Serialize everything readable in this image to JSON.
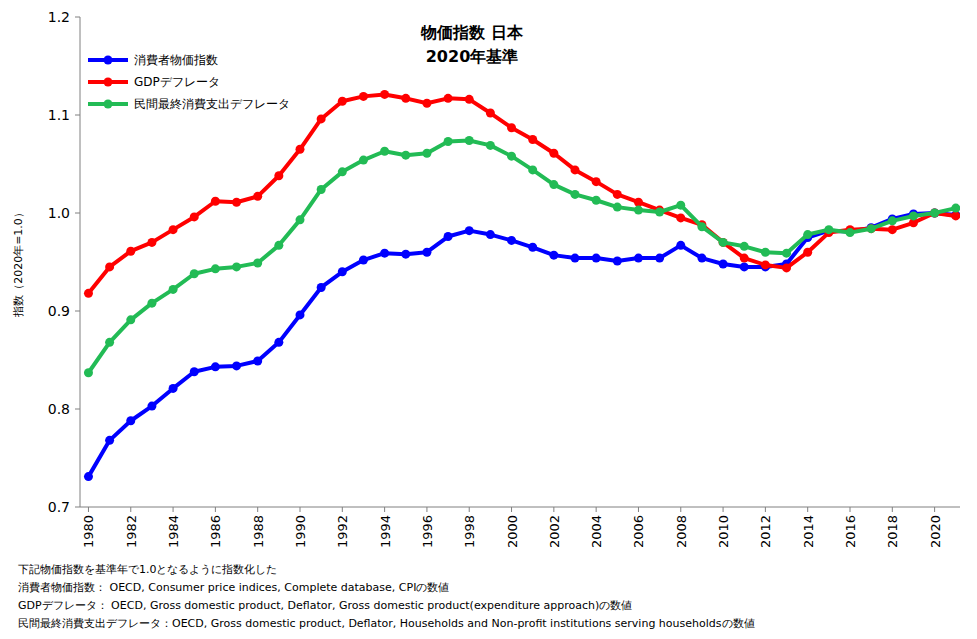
{
  "chart_data": {
    "type": "line",
    "title": "物価指数 日本",
    "subtitle": "2020年基準",
    "y_label": "指数（2020年=1.0）",
    "annotations": [
      "下記物価指数を基準年で1.0となるように指数化した",
      "消費者物価指数： OECD, Consumer price indices, Complete database, CPIの数値",
      "GDPデフレータ： OECD, Gross domestic product, Deflator, Gross domestic product(expenditure approach)の数値",
      "民間最終消費支出デフレータ：OECD, Gross domestic product, Deflator, Households and Non-profit institutions serving householdsの数値"
    ],
    "x": [
      1980,
      1981,
      1982,
      1983,
      1984,
      1985,
      1986,
      1987,
      1988,
      1989,
      1990,
      1991,
      1992,
      1993,
      1994,
      1995,
      1996,
      1997,
      1998,
      1999,
      2000,
      2001,
      2002,
      2003,
      2004,
      2005,
      2006,
      2007,
      2008,
      2009,
      2010,
      2011,
      2012,
      2013,
      2014,
      2015,
      2016,
      2017,
      2018,
      2019,
      2020,
      2021
    ],
    "series": [
      {
        "name": "消費者物価指数",
        "color": "#0000ff",
        "marker": "circle",
        "line_style": "solid",
        "values": [
          0.731,
          0.768,
          0.788,
          0.803,
          0.821,
          0.838,
          0.843,
          0.844,
          0.849,
          0.868,
          0.896,
          0.924,
          0.94,
          0.952,
          0.959,
          0.958,
          0.96,
          0.976,
          0.982,
          0.978,
          0.972,
          0.965,
          0.957,
          0.954,
          0.954,
          0.951,
          0.954,
          0.954,
          0.967,
          0.954,
          0.948,
          0.945,
          0.945,
          0.948,
          0.975,
          0.982,
          0.981,
          0.985,
          0.994,
          0.999,
          1.0,
          0.998
        ]
      },
      {
        "name": "GDPデフレータ",
        "color": "#ff0000",
        "marker": "circle",
        "line_style": "solid",
        "values": [
          0.918,
          0.945,
          0.961,
          0.97,
          0.983,
          0.996,
          1.012,
          1.011,
          1.017,
          1.038,
          1.065,
          1.096,
          1.114,
          1.119,
          1.121,
          1.117,
          1.112,
          1.117,
          1.116,
          1.102,
          1.087,
          1.075,
          1.061,
          1.044,
          1.032,
          1.019,
          1.011,
          1.003,
          0.995,
          0.988,
          0.97,
          0.954,
          0.947,
          0.944,
          0.96,
          0.98,
          0.983,
          0.984,
          0.983,
          0.99,
          1.0,
          0.997
        ]
      },
      {
        "name": "民間最終消費支出デフレータ",
        "color": "#22bb55",
        "marker": "circle",
        "line_style": "solid",
        "values": [
          0.837,
          0.868,
          0.891,
          0.908,
          0.922,
          0.938,
          0.943,
          0.945,
          0.949,
          0.967,
          0.993,
          1.024,
          1.042,
          1.054,
          1.063,
          1.059,
          1.061,
          1.073,
          1.074,
          1.069,
          1.058,
          1.044,
          1.029,
          1.019,
          1.013,
          1.006,
          1.003,
          1.001,
          1.008,
          0.986,
          0.97,
          0.966,
          0.96,
          0.959,
          0.978,
          0.983,
          0.98,
          0.984,
          0.992,
          0.997,
          1.0,
          1.005
        ]
      }
    ],
    "xlim": [
      1979.6,
      2021.2
    ],
    "xticks": [
      1980,
      1982,
      1984,
      1986,
      1988,
      1990,
      1992,
      1994,
      1996,
      1998,
      2000,
      2002,
      2004,
      2006,
      2008,
      2010,
      2012,
      2014,
      2016,
      2018,
      2020
    ],
    "ylim": [
      0.7,
      1.2
    ],
    "yticks": [
      0.7,
      0.8,
      0.9,
      {
        "value": 1,
        "label": "1.0"
      },
      1.1,
      1.2
    ],
    "grid": false,
    "legend": "upper left"
  }
}
